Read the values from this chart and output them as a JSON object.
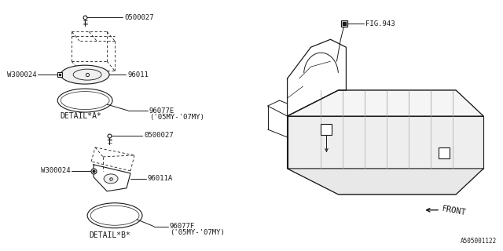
{
  "bg_color": "#ffffff",
  "line_color": "#1a1a1a",
  "footer": "A505001122",
  "labels": {
    "detail_a": "DETAIL*A*",
    "detail_b": "DETAIL*B*",
    "front": "FRONT",
    "fig943": "FIG.943",
    "p0500027": "0500027",
    "p96011": "96011",
    "p96077e": "96077E",
    "p96077e_sub": "('05MY-'07MY)",
    "pW300024": "W300024",
    "p96011A": "96011A",
    "p96077f": "96077F",
    "p96077f_sub": "('05MY-'07MY)"
  }
}
